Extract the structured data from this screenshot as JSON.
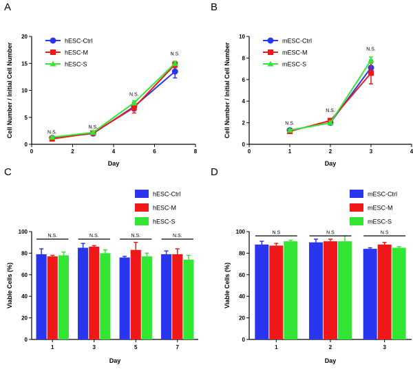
{
  "panels": [
    {
      "letter": "A",
      "chart_data": {
        "type": "line",
        "title": "",
        "xlabel": "Day",
        "ylabel": "Cell Number / Initial Cell Number",
        "xlim": [
          0,
          8
        ],
        "ylim": [
          0,
          20
        ],
        "xticks": [
          0,
          2,
          4,
          6,
          8
        ],
        "yticks": [
          0,
          5,
          10,
          15,
          20
        ],
        "x": [
          1,
          3,
          5,
          7
        ],
        "series": [
          {
            "name": "hESC-Ctrl",
            "color": "#2a35f0",
            "marker": "circle",
            "values": [
              1.2,
              2.0,
              7.0,
              13.5
            ],
            "errors": [
              0.3,
              0.3,
              0.8,
              1.2
            ]
          },
          {
            "name": "hESC-M",
            "color": "#f01818",
            "marker": "square",
            "values": [
              1.0,
              2.1,
              6.8,
              14.8
            ],
            "errors": [
              0.3,
              0.4,
              1.0,
              0.6
            ]
          },
          {
            "name": "hESC-S",
            "color": "#33e633",
            "marker": "triangle",
            "values": [
              1.3,
              2.2,
              7.7,
              15.0
            ],
            "errors": [
              0.2,
              0.3,
              0.4,
              0.4
            ]
          }
        ],
        "ns_labels": [
          {
            "x": 1,
            "y": 2.0,
            "text": "N.S."
          },
          {
            "x": 3,
            "y": 2.9,
            "text": "N.S."
          },
          {
            "x": 5,
            "y": 9.0,
            "text": "N.S."
          },
          {
            "x": 7,
            "y": 16.5,
            "text": "N.S."
          }
        ]
      }
    },
    {
      "letter": "B",
      "chart_data": {
        "type": "line",
        "title": "",
        "xlabel": "Day",
        "ylabel": "Cell Number / Initial Cell Number",
        "xlim": [
          0,
          4
        ],
        "ylim": [
          0,
          10
        ],
        "xticks": [
          0,
          1,
          2,
          3,
          4
        ],
        "yticks": [
          0,
          2,
          4,
          6,
          8,
          10
        ],
        "x": [
          1,
          2,
          3
        ],
        "series": [
          {
            "name": "mESC-Ctrl",
            "color": "#2a35f0",
            "marker": "circle",
            "values": [
              1.3,
              2.0,
              7.1
            ],
            "errors": [
              0.15,
              0.2,
              0.7
            ]
          },
          {
            "name": "mESC-M",
            "color": "#f01818",
            "marker": "square",
            "values": [
              1.2,
              2.2,
              6.6
            ],
            "errors": [
              0.15,
              0.2,
              1.0
            ]
          },
          {
            "name": "mESC-S",
            "color": "#33e633",
            "marker": "triangle",
            "values": [
              1.3,
              2.0,
              7.8
            ],
            "errors": [
              0.1,
              0.15,
              0.3
            ]
          }
        ],
        "ns_labels": [
          {
            "x": 1,
            "y": 1.8,
            "text": "N.S."
          },
          {
            "x": 2,
            "y": 3.0,
            "text": "N.S."
          },
          {
            "x": 3,
            "y": 8.7,
            "text": "N.S."
          }
        ]
      }
    },
    {
      "letter": "C",
      "chart_data": {
        "type": "bar",
        "title": "",
        "xlabel": "Day",
        "ylabel": "Viable Cells (%)",
        "ylim": [
          0,
          100
        ],
        "yticks": [
          0,
          20,
          40,
          60,
          80,
          100
        ],
        "categories": [
          "1",
          "3",
          "5",
          "7"
        ],
        "series": [
          {
            "name": "hESC-Ctrl",
            "color": "#2a35f0",
            "values": [
              79,
              85,
              76,
              79
            ],
            "errors": [
              5,
              4,
              1,
              3
            ]
          },
          {
            "name": "hESC-M",
            "color": "#f01818",
            "values": [
              77,
              86,
              83,
              79
            ],
            "errors": [
              1,
              1,
              7,
              5
            ]
          },
          {
            "name": "hESC-S",
            "color": "#33e633",
            "values": [
              78,
              80,
              77,
              74
            ],
            "errors": [
              3,
              3,
              3,
              4
            ]
          }
        ],
        "ns_labels": [
          "N.S.",
          "N.S.",
          "N.S.",
          "N.S."
        ]
      }
    },
    {
      "letter": "D",
      "chart_data": {
        "type": "bar",
        "title": "",
        "xlabel": "Day",
        "ylabel": "Viable Cells (%)",
        "ylim": [
          0,
          100
        ],
        "yticks": [
          0,
          20,
          40,
          60,
          80,
          100
        ],
        "categories": [
          "1",
          "2",
          "3"
        ],
        "series": [
          {
            "name": "mESC-Ctrl",
            "color": "#2a35f0",
            "values": [
              88,
              90,
              84
            ],
            "errors": [
              3,
              3,
              1
            ]
          },
          {
            "name": "mESC-M",
            "color": "#f01818",
            "values": [
              87,
              91,
              88
            ],
            "errors": [
              2,
              2,
              2
            ]
          },
          {
            "name": "mESC-S",
            "color": "#33e633",
            "values": [
              91,
              91,
              85
            ],
            "errors": [
              1,
              5,
              1
            ]
          }
        ],
        "ns_labels": [
          "N.S",
          "N.S",
          "N.S"
        ]
      }
    }
  ]
}
